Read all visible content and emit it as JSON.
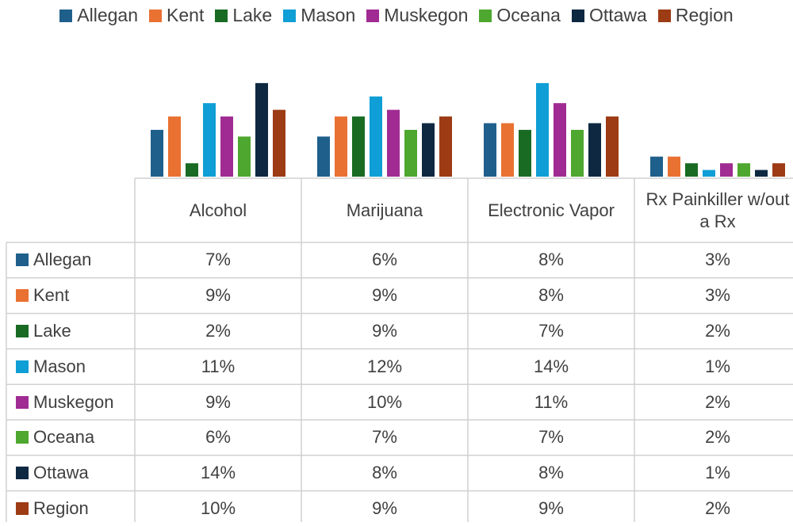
{
  "chart_data": {
    "type": "bar",
    "categories": [
      "Alcohol",
      "Marijuana",
      "Electronic Vapor",
      "Rx Painkiller w/out a Rx"
    ],
    "ylim": [
      0,
      16
    ],
    "legend": "top",
    "series": [
      {
        "name": "Allegan",
        "color": "#1f5f8b",
        "values": [
          7,
          6,
          8,
          3
        ],
        "value_labels": [
          "7%",
          "6%",
          "8%",
          "3%"
        ]
      },
      {
        "name": "Kent",
        "color": "#e97132",
        "values": [
          9,
          9,
          8,
          3
        ],
        "value_labels": [
          "9%",
          "9%",
          "8%",
          "3%"
        ]
      },
      {
        "name": "Lake",
        "color": "#196b24",
        "values": [
          2,
          9,
          7,
          2
        ],
        "value_labels": [
          "2%",
          "9%",
          "7%",
          "2%"
        ]
      },
      {
        "name": "Mason",
        "color": "#0f9ed5",
        "values": [
          11,
          12,
          14,
          1
        ],
        "value_labels": [
          "11%",
          "12%",
          "14%",
          "1%"
        ]
      },
      {
        "name": "Muskegon",
        "color": "#a02b93",
        "values": [
          9,
          10,
          11,
          2
        ],
        "value_labels": [
          "9%",
          "10%",
          "11%",
          "2%"
        ]
      },
      {
        "name": "Oceana",
        "color": "#4ea72e",
        "values": [
          6,
          7,
          7,
          2
        ],
        "value_labels": [
          "6%",
          "7%",
          "7%",
          "2%"
        ]
      },
      {
        "name": "Ottawa",
        "color": "#0e2841",
        "values": [
          14,
          8,
          8,
          1
        ],
        "value_labels": [
          "14%",
          "8%",
          "8%",
          "1%"
        ]
      },
      {
        "name": "Region",
        "color": "#9c3b14",
        "values": [
          10,
          9,
          9,
          2
        ],
        "value_labels": [
          "10%",
          "9%",
          "9%",
          "2%"
        ]
      }
    ]
  }
}
